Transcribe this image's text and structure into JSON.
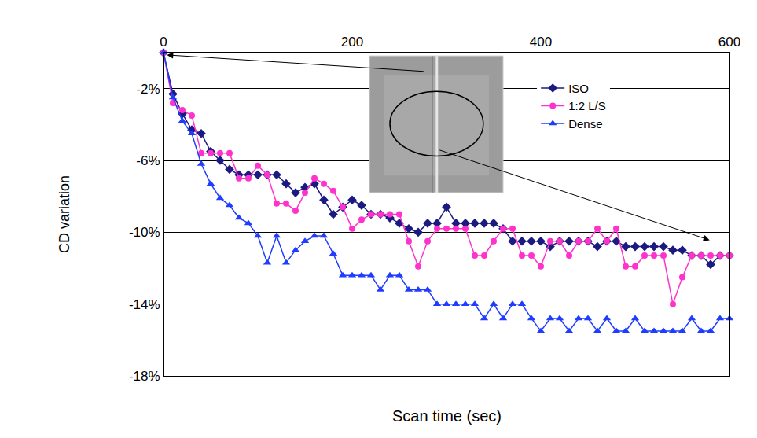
{
  "chart_data": {
    "type": "line",
    "x_label": "Scan time (sec)",
    "y_label": "CD variation",
    "x": [
      0,
      10,
      20,
      30,
      40,
      50,
      60,
      70,
      80,
      90,
      100,
      110,
      120,
      130,
      140,
      150,
      160,
      170,
      180,
      190,
      200,
      210,
      220,
      230,
      240,
      250,
      260,
      270,
      280,
      290,
      300,
      310,
      320,
      330,
      340,
      350,
      360,
      370,
      380,
      390,
      400,
      410,
      420,
      430,
      440,
      450,
      460,
      470,
      480,
      490,
      500,
      510,
      520,
      530,
      540,
      550,
      560,
      570,
      580,
      590,
      600
    ],
    "series": [
      {
        "name": "ISO",
        "color": "#1a1a80",
        "marker": "diamond",
        "line_style": "solid",
        "values": [
          0,
          -2.3,
          -3.4,
          -4.3,
          -4.5,
          -5.5,
          -6,
          -6.5,
          -6.8,
          -6.8,
          -6.8,
          -6.8,
          -6.8,
          -7.3,
          -7.8,
          -7.5,
          -7.3,
          -8.2,
          -9,
          -8.6,
          -8.2,
          -8.5,
          -9,
          -9,
          -9.2,
          -9.5,
          -9.8,
          -10,
          -9.5,
          -9.5,
          -8.6,
          -9.5,
          -9.5,
          -9.5,
          -9.5,
          -9.5,
          -9.8,
          -10.5,
          -10.5,
          -10.5,
          -10.5,
          -10.8,
          -10.5,
          -10.5,
          -10.5,
          -10.5,
          -10.8,
          -10.5,
          -10.5,
          -10.8,
          -10.8,
          -10.8,
          -10.8,
          -10.8,
          -11,
          -11,
          -11.3,
          -11.3,
          -11.8,
          -11.3,
          -11.3
        ]
      },
      {
        "name": "1:2 L/S",
        "color": "#ff33cc",
        "marker": "circle",
        "line_style": "solid",
        "values": [
          0,
          -2.8,
          -3.2,
          -3.5,
          -5.6,
          -5.6,
          -5.6,
          -5.6,
          -7,
          -7,
          -6.3,
          -6.8,
          -8.4,
          -8.4,
          -8.8,
          -7.8,
          -7,
          -7.3,
          -7.7,
          -8.6,
          -9.8,
          -9.3,
          -9,
          -9,
          -9,
          -9,
          -10.5,
          -11.9,
          -10.5,
          -9.8,
          -9.8,
          -9.8,
          -9.8,
          -11.3,
          -11.3,
          -10.5,
          -9.8,
          -9.8,
          -11.3,
          -11.3,
          -11.9,
          -10.5,
          -10.5,
          -11.3,
          -10.5,
          -10.5,
          -9.8,
          -10.5,
          -9.8,
          -11.9,
          -11.9,
          -11.3,
          -11.3,
          -11.3,
          -14,
          -12.5,
          -11.3,
          -11.3,
          -11.3,
          -11.3,
          -11.3
        ]
      },
      {
        "name": "Dense",
        "color": "#1f3cff",
        "marker": "triangle-up",
        "line_style": "solid",
        "values": [
          0,
          -2.5,
          -3.8,
          -4.5,
          -6.2,
          -7.3,
          -8.1,
          -8.5,
          -9.2,
          -9.5,
          -10.2,
          -11.7,
          -10.2,
          -11.7,
          -11,
          -10.5,
          -10.2,
          -10.2,
          -11.2,
          -12.4,
          -12.4,
          -12.4,
          -12.4,
          -13.2,
          -12.4,
          -12.4,
          -13.2,
          -13.2,
          -13.2,
          -14,
          -14,
          -14,
          -14,
          -14,
          -14.8,
          -14,
          -14.8,
          -14,
          -14,
          -14.8,
          -15.5,
          -14.8,
          -14.8,
          -15.5,
          -14.8,
          -14.8,
          -15.5,
          -14.8,
          -15.5,
          -15.5,
          -14.8,
          -15.5,
          -15.5,
          -15.5,
          -15.5,
          -15.5,
          -14.8,
          -15.5,
          -15.5,
          -14.8,
          -14.8
        ]
      }
    ],
    "xlim": [
      0,
      600
    ],
    "xticks": [
      0,
      200,
      400,
      600
    ],
    "ylim": [
      -18,
      0
    ],
    "yticks": [
      {
        "value": -2,
        "label": "-2%"
      },
      {
        "value": -6,
        "label": "-6%"
      },
      {
        "value": -10,
        "label": "-10%"
      },
      {
        "value": -14,
        "label": "-14%"
      },
      {
        "value": -18,
        "label": "-18%"
      }
    ],
    "grid": true,
    "legend": "upper right"
  }
}
